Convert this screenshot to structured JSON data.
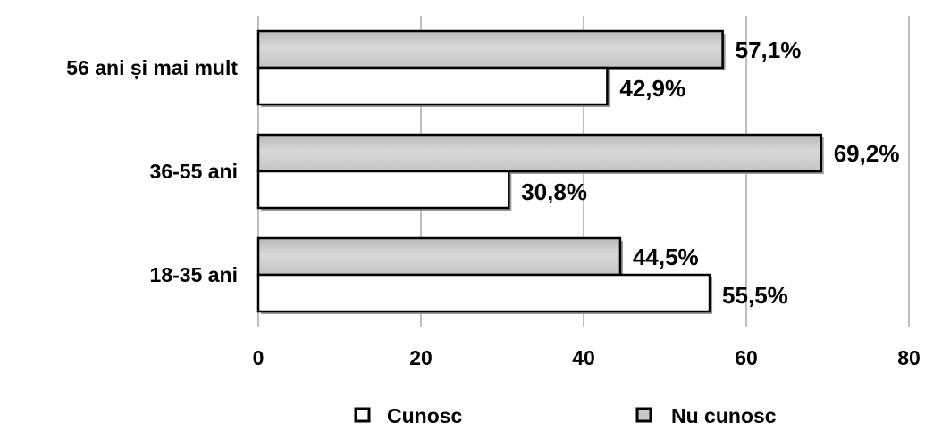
{
  "chart_data": {
    "type": "bar",
    "orientation": "horizontal",
    "categories": [
      "18-35  ani",
      "36-55  ani",
      "56  ani și mai mult"
    ],
    "series": [
      {
        "name": "Cunosc",
        "values": [
          55.5,
          30.8,
          42.9
        ],
        "labels": [
          "55,5%",
          "30,8%",
          "42,9%"
        ],
        "color": "#ffffff"
      },
      {
        "name": "Nu cunosc",
        "values": [
          44.5,
          69.2,
          57.1
        ],
        "labels": [
          "44,5%",
          "69,2%",
          "57,1%"
        ],
        "color": "#c8c8c8"
      }
    ],
    "xlim": [
      0,
      80
    ],
    "xticks": [
      0,
      20,
      40,
      60,
      80
    ],
    "xtick_labels": [
      "0",
      "20",
      "40",
      "60",
      "80"
    ],
    "grid": true,
    "legend_position": "bottom"
  }
}
